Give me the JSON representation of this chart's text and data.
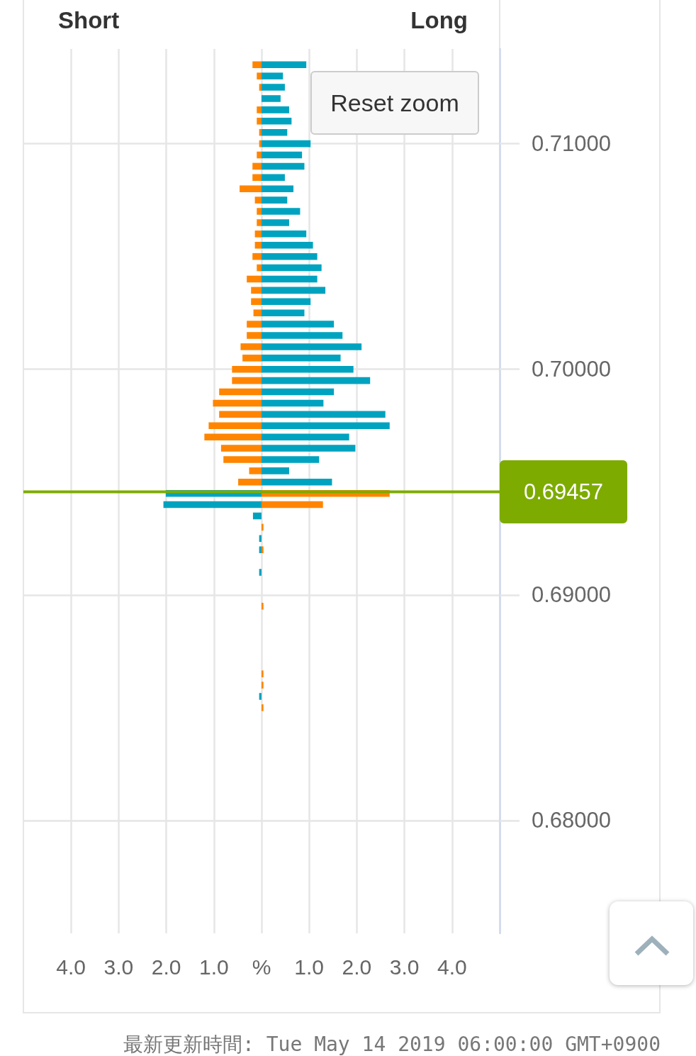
{
  "chart_data": {
    "type": "bar",
    "orientation": "horizontal",
    "stacked": true,
    "annotations": [
      "Short",
      "Long",
      "Reset zoom",
      "最新更新時間: Tue May 14 2019 06:00:00 GMT+0900"
    ],
    "x": [
      0.7135,
      0.713,
      0.7125,
      0.712,
      0.7115,
      0.711,
      0.7105,
      0.71,
      0.7095,
      0.709,
      0.7085,
      0.708,
      0.7075,
      0.707,
      0.7065,
      0.706,
      0.7055,
      0.705,
      0.7045,
      0.704,
      0.7035,
      0.703,
      0.7025,
      0.702,
      0.7015,
      0.701,
      0.7005,
      0.7,
      0.6995,
      0.699,
      0.6985,
      0.698,
      0.6975,
      0.697,
      0.6965,
      0.696,
      0.6955,
      0.695,
      0.6945,
      0.694,
      0.6935,
      0.693,
      0.6925,
      0.692,
      0.691,
      0.6895,
      0.6865,
      0.686,
      0.6855,
      0.685
    ],
    "series": [
      {
        "color": "#ff8500",
        "values": [
          -0.19,
          -0.1,
          -0.05,
          null,
          -0.1,
          -0.1,
          -0.05,
          -0.05,
          -0.1,
          -0.19,
          -0.19,
          -0.46,
          -0.14,
          -0.1,
          -0.1,
          -0.14,
          -0.14,
          -0.19,
          -0.1,
          -0.31,
          -0.22,
          -0.22,
          -0.17,
          -0.31,
          -0.31,
          -0.44,
          -0.4,
          -0.62,
          -0.62,
          -0.89,
          -1.02,
          -0.89,
          -1.11,
          -1.2,
          -0.85,
          -0.8,
          -0.26,
          -0.49,
          2.69,
          1.29,
          null,
          0.04,
          null,
          0.04,
          null,
          0.04,
          0.04,
          0.04,
          null,
          0.04
        ]
      },
      {
        "color": "#00a3bf",
        "values": [
          0.94,
          0.45,
          0.49,
          0.4,
          0.58,
          0.63,
          0.54,
          1.03,
          0.85,
          0.9,
          0.49,
          0.67,
          0.54,
          0.81,
          0.58,
          0.94,
          1.08,
          1.17,
          1.26,
          1.17,
          1.34,
          1.03,
          0.9,
          1.52,
          1.7,
          2.1,
          1.66,
          1.93,
          2.28,
          1.52,
          1.3,
          2.6,
          2.69,
          1.84,
          1.97,
          1.21,
          0.58,
          1.48,
          -2.01,
          -2.06,
          -0.18,
          null,
          -0.05,
          -0.05,
          -0.05,
          null,
          null,
          null,
          -0.05,
          null
        ]
      }
    ],
    "xlim": [
      -5,
      5
    ],
    "xticks": [
      {
        "value": -4,
        "label": "4.0"
      },
      {
        "value": -3,
        "label": "3.0"
      },
      {
        "value": -2,
        "label": "2.0"
      },
      {
        "value": -1,
        "label": "1.0"
      },
      {
        "value": 0,
        "label": "%"
      },
      {
        "value": 1,
        "label": "1.0"
      },
      {
        "value": 2,
        "label": "2.0"
      },
      {
        "value": 3,
        "label": "3.0"
      },
      {
        "value": 4,
        "label": "4.0"
      }
    ],
    "ylim": [
      0.675,
      0.7142
    ],
    "yticks": [
      {
        "value": 0.68,
        "label": "0.68000"
      },
      {
        "value": 0.69,
        "label": "0.69000"
      },
      {
        "value": 0.7,
        "label": "0.70000"
      },
      {
        "value": 0.71,
        "label": "0.71000"
      }
    ],
    "ref_lines": [
      {
        "axis": "y",
        "value": 0.69457,
        "label": "0.69457",
        "color": "#7dab00"
      }
    ],
    "grid": true
  }
}
